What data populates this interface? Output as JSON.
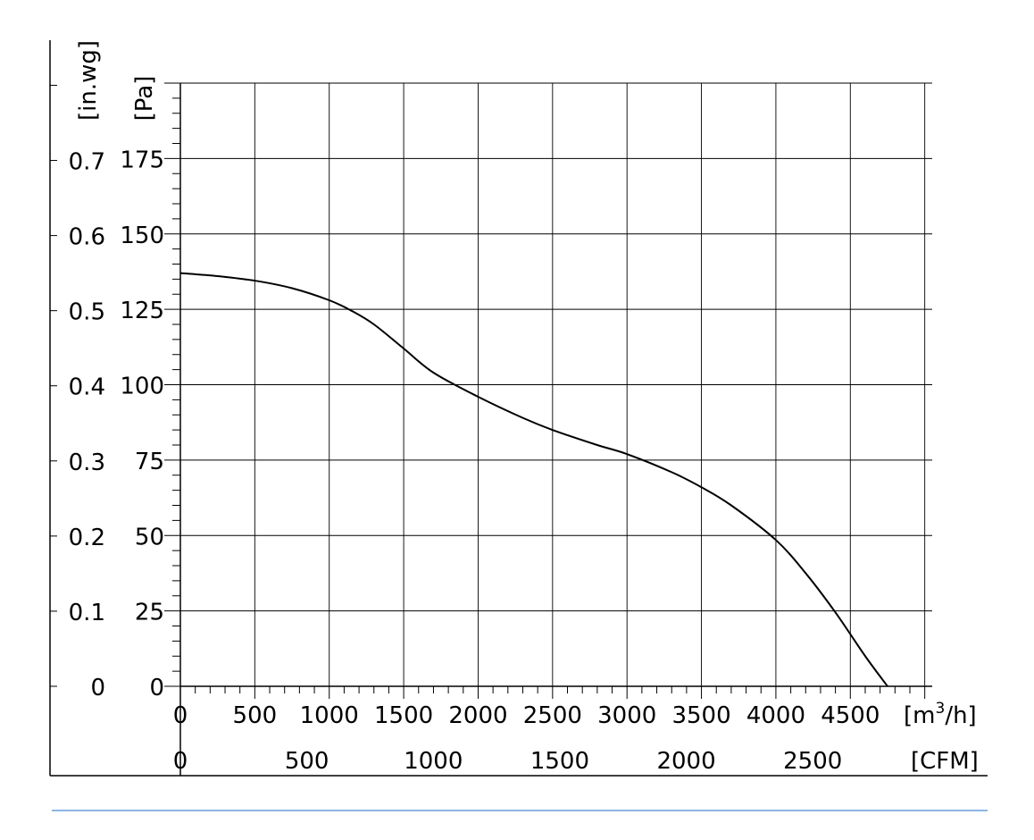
{
  "chart_data": {
    "type": "line",
    "title": "",
    "x_axis_primary": {
      "unit": "[m³/h]",
      "unit_main": "[m",
      "unit_sup": "3",
      "unit_tail": "/h]",
      "range": [
        0,
        5050
      ],
      "ticks": [
        0,
        500,
        1000,
        1500,
        2000,
        2500,
        3000,
        3500,
        4000,
        4500
      ],
      "tick_labels": [
        "0",
        "500",
        "1000",
        "1500",
        "2000",
        "2500",
        "3000",
        "3500",
        "4000",
        "4500"
      ]
    },
    "x_axis_secondary": {
      "unit": "[CFM]",
      "ticks": [
        0,
        500,
        1000,
        1500,
        2000,
        2500
      ],
      "tick_labels": [
        "0",
        "500",
        "1000",
        "1500",
        "2000",
        "2500"
      ],
      "m3h_per_cfm": 1.699
    },
    "y_axis_primary": {
      "unit": "[Pa]",
      "range": [
        0,
        200
      ],
      "ticks": [
        0,
        25,
        50,
        75,
        100,
        125,
        150,
        175
      ],
      "tick_labels": [
        "0",
        "25",
        "50",
        "75",
        "100",
        "125",
        "150",
        "175"
      ]
    },
    "y_axis_secondary": {
      "unit": "[in.wg]",
      "ticks": [
        0,
        0.1,
        0.2,
        0.3,
        0.4,
        0.5,
        0.6,
        0.7
      ],
      "tick_labels": [
        "0",
        "0.1",
        "0.2",
        "0.3",
        "0.4",
        "0.5",
        "0.6",
        "0.7"
      ],
      "pa_per_inwg": 249.09
    },
    "grid": true,
    "legend": "none",
    "series": [
      {
        "x": [
          0,
          250,
          500,
          750,
          1000,
          1150,
          1300,
          1500,
          1700,
          2000,
          2300,
          2500,
          2800,
          3000,
          3300,
          3500,
          3700,
          4000,
          4200,
          4400,
          4600,
          4750
        ],
        "y": [
          137,
          136,
          134.5,
          132,
          128,
          124.5,
          120,
          112,
          104,
          96,
          89,
          85,
          80,
          77,
          71,
          66,
          60,
          48.5,
          37.5,
          24.5,
          10,
          0
        ]
      }
    ],
    "colors": {
      "curve": "#000000",
      "grid": "#000000",
      "footer_rule": "#4a86d4"
    }
  }
}
